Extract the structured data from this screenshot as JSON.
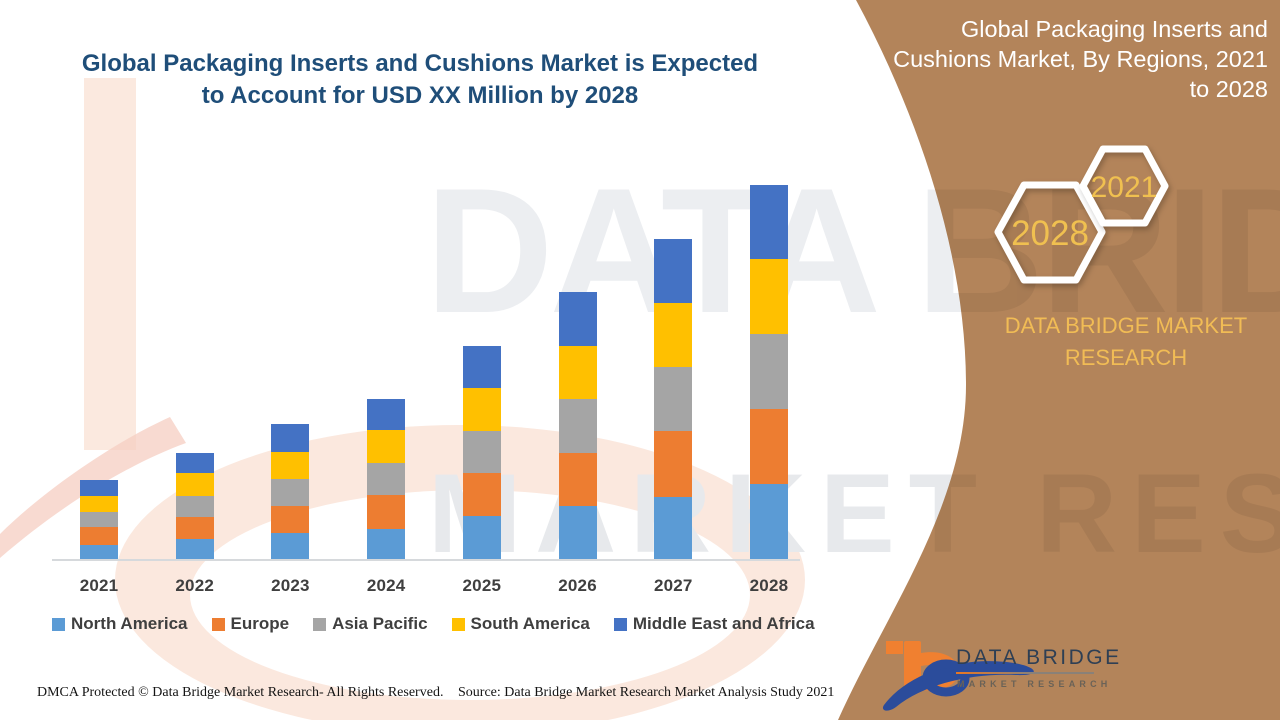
{
  "title": {
    "text": "Global Packaging Inserts and Cushions Market is Expected to Account for USD XX Million by 2028",
    "color": "#1F4E79"
  },
  "panel": {
    "heading": "Global Packaging Inserts and Cushions Market, By Regions, 2021 to 2028",
    "color": "#B3845A",
    "text_color": "#FFFFFF",
    "gold": "#F0C050",
    "hexagons": [
      {
        "label": "2021"
      },
      {
        "label": "2028"
      }
    ],
    "brand_text": "DATA BRIDGE MARKET RESEARCH"
  },
  "watermark": {
    "line1": "DATA BRIDGE",
    "line2": "MARKET RESEARCH"
  },
  "logo": {
    "name": "DATA BRIDGE",
    "tagline": "MARKET RESEARCH"
  },
  "footer": {
    "left": "DMCA Protected © Data Bridge Market Research- All Rights Reserved.",
    "source": "Source: Data Bridge Market Research Market Analysis Study 2021"
  },
  "chart_data": {
    "type": "bar",
    "stacked": true,
    "title": "Global Packaging Inserts and Cushions Market, By Regions, 2021 to 2028",
    "xlabel": "",
    "ylabel": "",
    "value_axis_visible": false,
    "units": "USD Million (values undisclosed as XX; heights are relative units)",
    "legend_position": "bottom",
    "categories": [
      "2021",
      "2022",
      "2023",
      "2024",
      "2025",
      "2026",
      "2027",
      "2028"
    ],
    "series": [
      {
        "name": "North America",
        "color": "#5B9BD5",
        "values": [
          15.5,
          21.5,
          27,
          31.5,
          44,
          54,
          63.5,
          76
        ]
      },
      {
        "name": "Europe",
        "color": "#ED7D31",
        "values": [
          18,
          22,
          27,
          34,
          43,
          53,
          66,
          75
        ]
      },
      {
        "name": "Asia Pacific",
        "color": "#A5A5A5",
        "values": [
          15,
          21,
          27,
          32,
          42,
          54,
          64,
          75
        ]
      },
      {
        "name": "South America",
        "color": "#FFC000",
        "values": [
          16,
          23,
          27,
          33,
          43,
          53,
          64,
          75
        ]
      },
      {
        "name": "Middle East and Africa",
        "color": "#4472C4",
        "values": [
          16,
          20,
          28,
          31,
          42,
          54,
          64,
          74
        ]
      }
    ],
    "totals": [
      80.5,
      107.5,
      136,
      161.5,
      214,
      268,
      321.5,
      375
    ]
  }
}
